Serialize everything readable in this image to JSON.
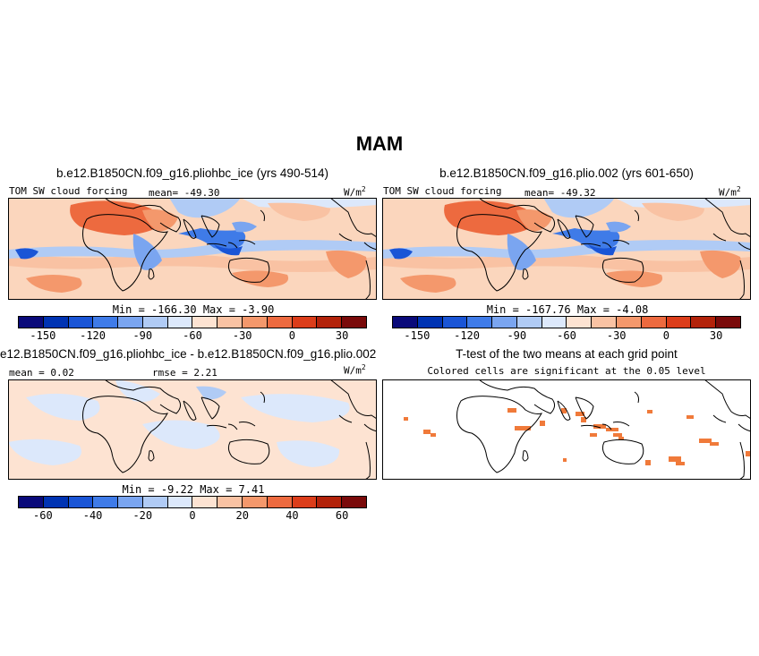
{
  "figure": {
    "title": "MAM"
  },
  "panels": [
    {
      "title": "b.e12.B1850CN.f09_g16.pliohbc_ice (yrs 490-514)",
      "left_label": "TOM SW cloud forcing",
      "center_label": "mean= -49.30",
      "units_base": "W/m",
      "units_exp": "2",
      "minmax": "Min = -166.30 Max = -3.90"
    },
    {
      "title": "b.e12.B1850CN.f09_g16.plio.002 (yrs 601-650)",
      "left_label": "TOM SW cloud forcing",
      "center_label": "mean= -49.32",
      "units_base": "W/m",
      "units_exp": "2",
      "minmax": "Min = -167.76 Max = -4.08"
    },
    {
      "title": "e12.B1850CN.f09_g16.pliohbc_ice - b.e12.B1850CN.f09_g16.plio.002",
      "left_label": "mean = 0.02",
      "center_label": "rmse = 2.21",
      "units_base": "W/m",
      "units_exp": "2",
      "minmax": "Min = -9.22 Max = 7.41"
    },
    {
      "title": "T-test of the two means at each grid point",
      "subtitle": "Colored cells are significant at the 0.05 level"
    }
  ],
  "colorbars": {
    "main": {
      "colors": [
        "#0a0a7a",
        "#0033b3",
        "#1a55d6",
        "#3f7be8",
        "#7aa5f0",
        "#b0cbf5",
        "#dce8fb",
        "#fde3d2",
        "#f9c2a3",
        "#f4986c",
        "#ed6a3f",
        "#dc3d1a",
        "#b3220a",
        "#7a0a0a"
      ],
      "tick_labels": [
        "-150",
        "-120",
        "-90",
        "-60",
        "-30",
        "0",
        "30"
      ],
      "tick_positions": [
        1,
        3,
        5,
        7,
        9,
        11,
        13
      ]
    },
    "diff": {
      "colors": [
        "#0a0a7a",
        "#0033b3",
        "#1a55d6",
        "#3f7be8",
        "#7aa5f0",
        "#b0cbf5",
        "#dce8fb",
        "#fde3d2",
        "#f9c2a3",
        "#f4986c",
        "#ed6a3f",
        "#dc3d1a",
        "#b3220a",
        "#7a0a0a"
      ],
      "tick_labels": [
        "-60",
        "-40",
        "-20",
        "0",
        "20",
        "40",
        "60"
      ],
      "tick_positions": [
        1,
        3,
        5,
        7,
        9,
        11,
        13
      ]
    }
  },
  "significance_color": "#f07a3a"
}
